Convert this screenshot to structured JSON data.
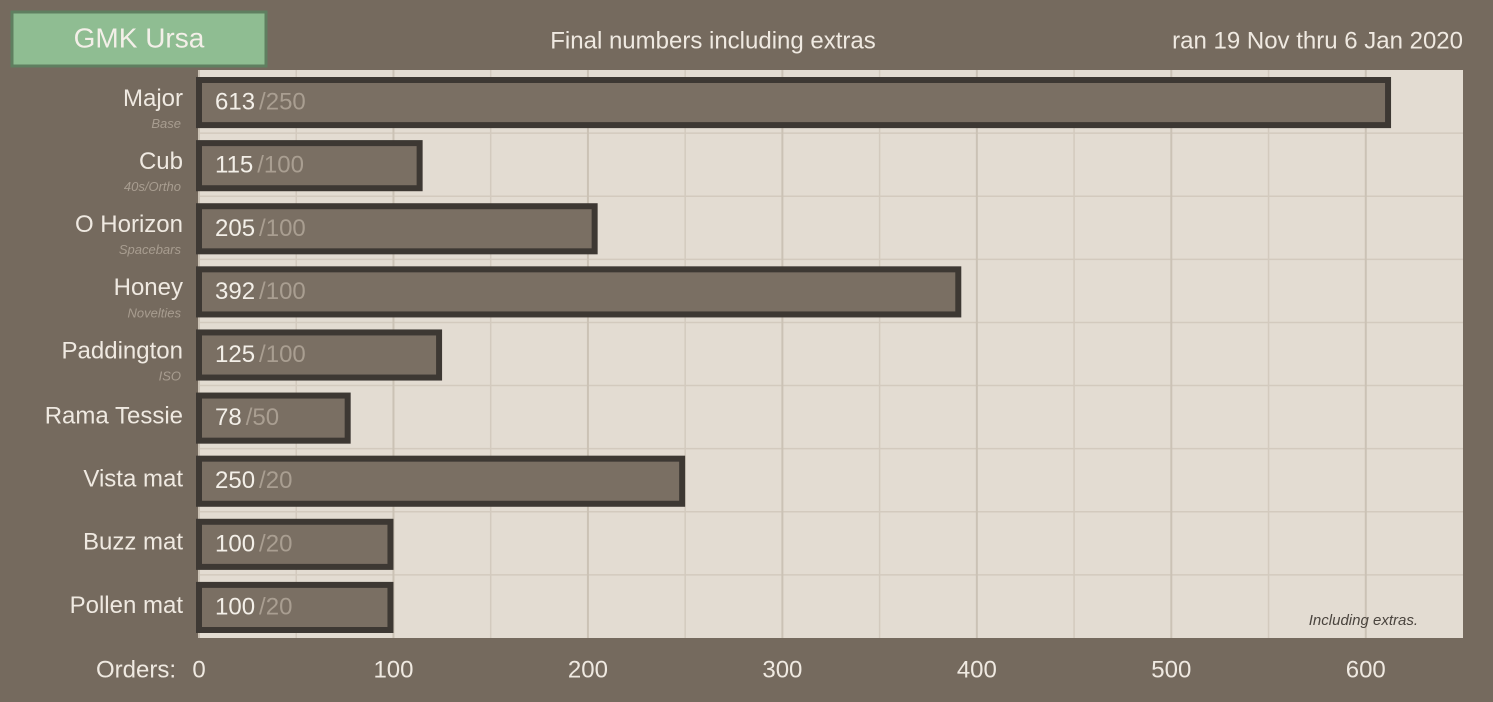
{
  "chart_data": {
    "type": "bar",
    "orientation": "horizontal",
    "title": "GMK Ursa",
    "subtitle": "Final numbers including extras",
    "date_note": "ran 19 Nov thru 6 Jan 2020",
    "x_label": "Orders:",
    "annotation": "Including extras.",
    "categories": [
      "Major",
      "Cub",
      "O Horizon",
      "Honey",
      "Paddington",
      "Rama Tessie",
      "Vista mat",
      "Buzz mat",
      "Pollen mat"
    ],
    "sublabels": [
      "Base",
      "40s/Ortho",
      "Spacebars",
      "Novelties",
      "ISO",
      null,
      null,
      null,
      null
    ],
    "values": [
      613,
      115,
      205,
      392,
      125,
      78,
      250,
      100,
      100
    ],
    "minimum_labels": [
      "/250",
      "/100",
      "/100",
      "/100",
      "/100",
      "/50",
      "/20",
      "/20",
      "/20"
    ],
    "color": "#7a6f63",
    "xlim": [
      0,
      650
    ],
    "xticks": [
      0,
      100,
      200,
      300,
      400,
      500,
      600
    ],
    "minor_xticks": [
      50,
      150,
      250,
      350,
      450,
      550
    ],
    "grid": true
  }
}
